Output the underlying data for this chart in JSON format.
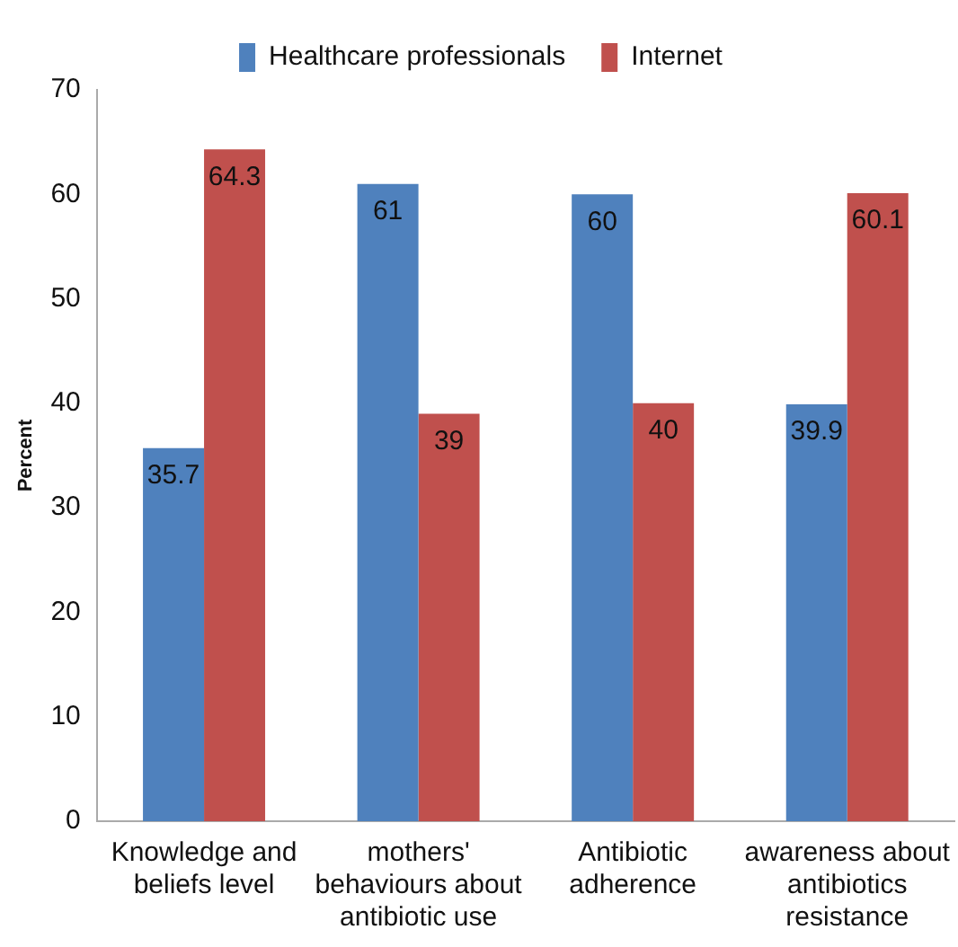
{
  "chart_data": {
    "type": "bar",
    "ylabel": "Percent",
    "categories": [
      "Knowledge and beliefs level",
      "mothers' behaviours about antibiotic use",
      "Antibiotic adherence",
      "awareness about antibiotics resistance"
    ],
    "series": [
      {
        "name": "Healthcare professionals",
        "color": "#4f81bd",
        "values": [
          35.7,
          61,
          60,
          39.9
        ]
      },
      {
        "name": "Internet",
        "color": "#c0504d",
        "values": [
          64.3,
          39,
          40,
          60.1
        ]
      }
    ],
    "ylim": [
      0,
      70
    ],
    "yticks": [
      0,
      10,
      20,
      30,
      40,
      50,
      60,
      70
    ],
    "grid": false,
    "legend": "top",
    "data_labels": true
  }
}
